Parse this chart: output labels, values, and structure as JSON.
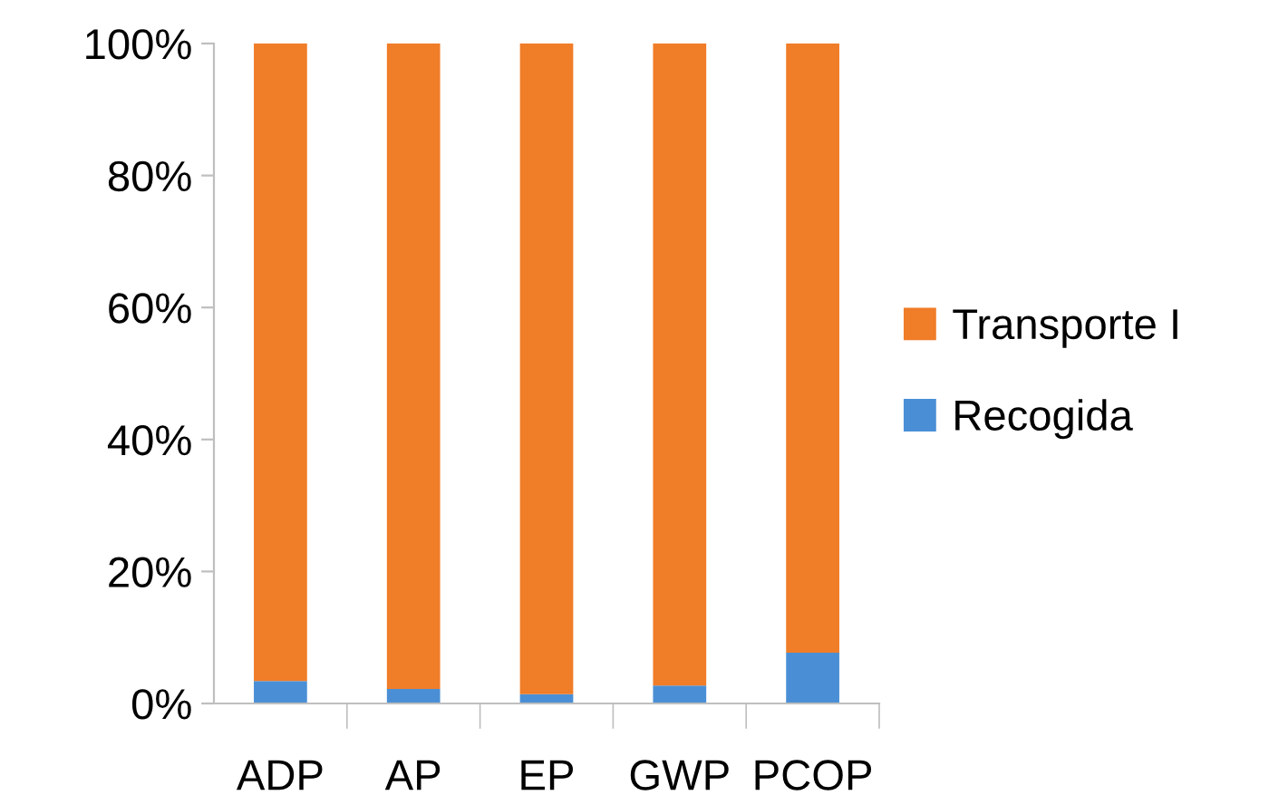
{
  "chart_data": {
    "type": "bar",
    "stacked": true,
    "categories": [
      "ADP",
      "AP",
      "EP",
      "GWP",
      "PCOP"
    ],
    "series": [
      {
        "name": "Recogida",
        "color": "#4a8fd6",
        "values": [
          3.4,
          2.2,
          1.4,
          2.7,
          7.7
        ]
      },
      {
        "name": "Transporte I",
        "color": "#f07d28",
        "values": [
          96.6,
          97.8,
          98.6,
          97.3,
          92.3
        ]
      }
    ],
    "ylim": [
      0,
      100
    ],
    "yticks": [
      {
        "value": 0,
        "label": "0%"
      },
      {
        "value": 20,
        "label": "20%"
      },
      {
        "value": 40,
        "label": "40%"
      },
      {
        "value": 60,
        "label": "60%"
      },
      {
        "value": 80,
        "label": "80%"
      },
      {
        "value": 100,
        "label": "100%"
      }
    ],
    "grid": false,
    "legend": "right"
  }
}
